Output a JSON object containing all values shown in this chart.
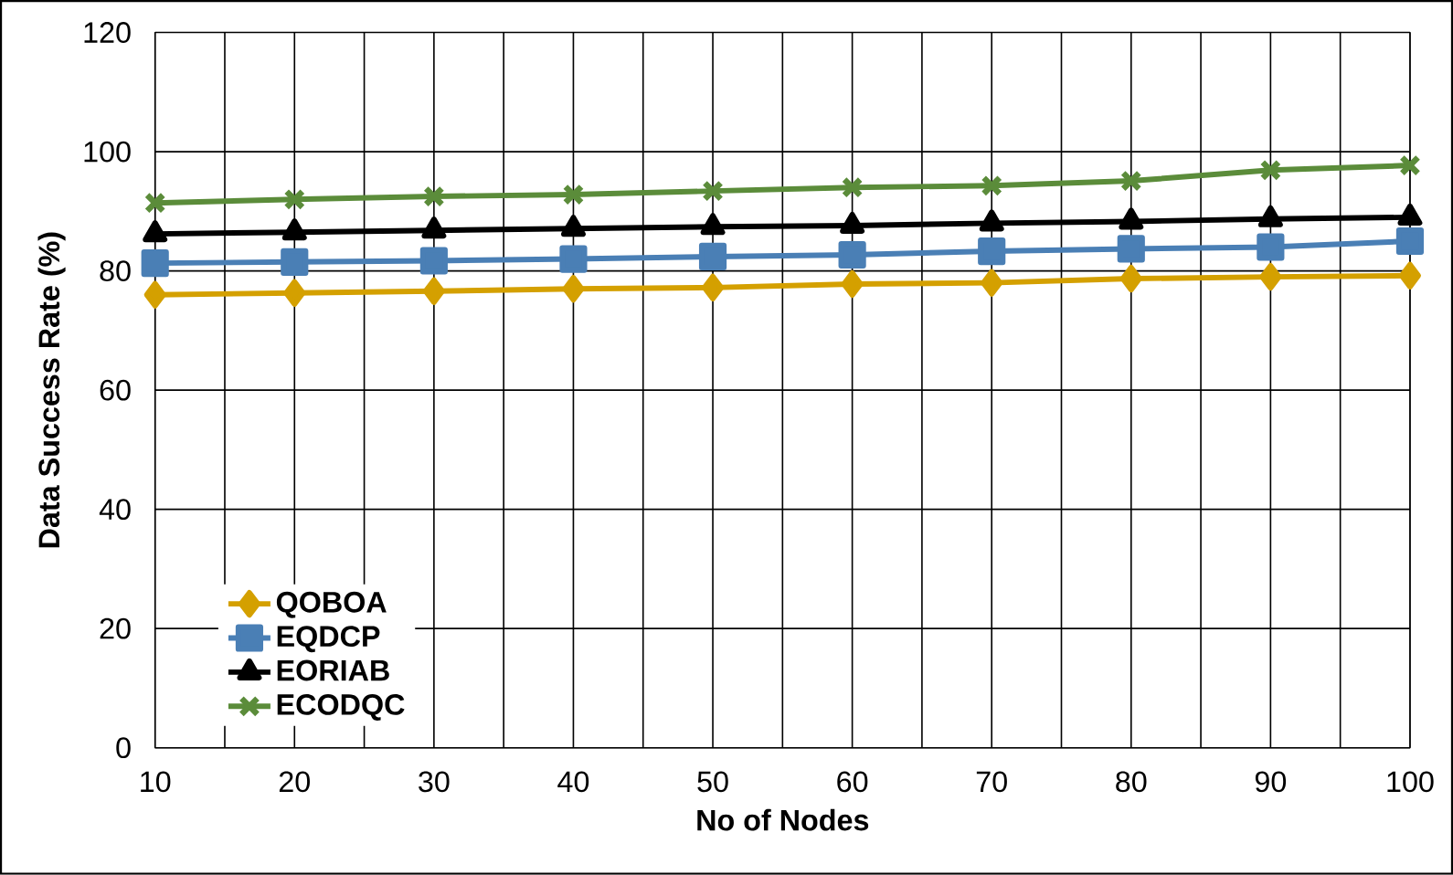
{
  "chart_data": {
    "type": "line",
    "xlabel": "No of Nodes",
    "ylabel": "Data Success Rate (%)",
    "x": [
      10,
      20,
      30,
      40,
      50,
      60,
      70,
      80,
      90,
      100
    ],
    "xlim": [
      10,
      100
    ],
    "xticks": [
      10,
      20,
      30,
      40,
      50,
      60,
      70,
      80,
      90,
      100
    ],
    "ylim": [
      0,
      120
    ],
    "yticks": [
      0,
      20,
      40,
      60,
      80,
      100,
      120
    ],
    "grid": true,
    "legend": "bottom left",
    "series": [
      {
        "name": "QOBOA",
        "color": "#d4a000",
        "marker": "diamond",
        "values": [
          76,
          76.3,
          76.6,
          77,
          77.2,
          77.8,
          78,
          78.7,
          79,
          79.2
        ]
      },
      {
        "name": "EQDCP",
        "color": "#4a7fb5",
        "marker": "square",
        "values": [
          81.3,
          81.5,
          81.7,
          82,
          82.4,
          82.7,
          83.3,
          83.7,
          84,
          85
        ]
      },
      {
        "name": "EORIAB",
        "color": "#000000",
        "marker": "triangle",
        "values": [
          86.2,
          86.5,
          86.8,
          87.1,
          87.4,
          87.6,
          88,
          88.3,
          88.7,
          89
        ]
      },
      {
        "name": "ECODQC",
        "color": "#5b8c3a",
        "marker": "cross",
        "values": [
          91.4,
          92,
          92.5,
          92.8,
          93.4,
          94,
          94.3,
          95.1,
          96.9,
          97.7
        ]
      }
    ]
  }
}
